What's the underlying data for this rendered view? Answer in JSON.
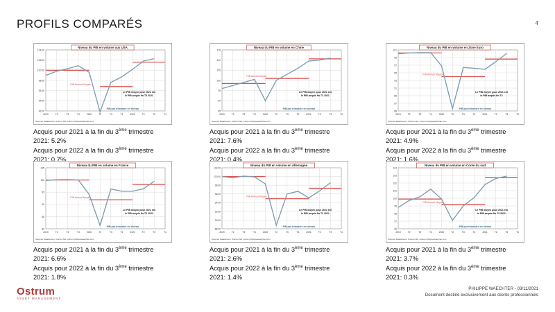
{
  "page": {
    "title": "PROFILS COMPARÉS",
    "number": "4"
  },
  "footer": {
    "author": "PHILIPPE WAECHTER - 03/11/2021",
    "disclaimer": "Document destiné exclusivement aux clients professionnels",
    "logo": "Ostrum",
    "logo_sub": "ASSET MANAGEMENT"
  },
  "common": {
    "x_labels": [
      "2019",
      "T2",
      "T3",
      "T4",
      "2020",
      "T2",
      "T3",
      "T4",
      "2021",
      "T2",
      "T3",
      "T4"
    ],
    "annual_label": "PIB Annuel Moyen",
    "quarterly_label": "PIB par trimestre en niveau",
    "source": "Sources Datastream, Ostrum AM, ostrum.philippewaechter.com",
    "colors": {
      "line": "#7f9fb4",
      "avg": "#d9534f",
      "title_border": "#c0392b",
      "grid": "#cfcfcf"
    }
  },
  "captions": {
    "prefix_2021": "Acquis pour 2021 à la fin du 3",
    "prefix_2022": "Acquis pour 2022 à la fin du 3",
    "sup": "ème",
    "suffix": " trimestre"
  },
  "chart_data": [
    {
      "type": "line",
      "title": "Niveau du PIB en volume aux USA",
      "yticks": [
        "92.00",
        "94.00",
        "96.00",
        "98.00",
        "100.00",
        "102.00",
        "104.00"
      ],
      "ylim": [
        92,
        104
      ],
      "note": [
        "Le PIB moyen pour 2021 est",
        "le PIB acquis fin T3 2021"
      ],
      "series": [
        {
          "values": [
            99.0,
            99.8,
            100.3,
            100.9,
            99.6,
            91.8,
            97.6,
            98.7,
            100.2,
            101.8,
            102.3
          ]
        }
      ],
      "averages": [
        {
          "from": 0,
          "to": 4,
          "value": 100.0
        },
        {
          "from": 5,
          "to": 8,
          "value": 96.8
        },
        {
          "from": 8,
          "to": 11,
          "value": 101.6
        }
      ],
      "acquis_2021": "2021: 5.2%",
      "acquis_2022": "2021: 0.7%"
    },
    {
      "type": "line",
      "title": "Niveau du PIB en volume en Chine",
      "yticks": [
        "85",
        "90",
        "95",
        "100",
        "105",
        "110",
        "115"
      ],
      "ylim": [
        85,
        115
      ],
      "note": [
        "Le PIB moyen pour 2021 est",
        "le PIB acquis fin T3 2021"
      ],
      "series": [
        {
          "values": [
            96.0,
            97.5,
            99.0,
            100.5,
            90.0,
            100.0,
            103.0,
            106.0,
            109.5,
            110.0,
            111.0
          ]
        }
      ],
      "averages": [
        {
          "from": 0,
          "to": 4,
          "value": 98.5
        },
        {
          "from": 4,
          "to": 8,
          "value": 101.0
        },
        {
          "from": 8,
          "to": 11,
          "value": 110.6
        }
      ],
      "acquis_2021": "2021: 7.6%",
      "acquis_2022": "2021: 0.4%"
    },
    {
      "type": "line",
      "title": "Niveau du PIB en volume en Zone Euro",
      "yticks": [
        "85",
        "87",
        "89",
        "91",
        "93",
        "95",
        "97",
        "99",
        "101"
      ],
      "ylim": [
        85,
        101
      ],
      "note": [
        "Le PIB moyen pour 2021 est",
        "le PIB acquis fin T3"
      ],
      "series": [
        {
          "values": [
            100.0,
            100.2,
            100.3,
            100.3,
            96.8,
            85.6,
            96.4,
            96.2,
            95.9,
            97.9,
            100.1
          ]
        }
      ],
      "averages": [
        {
          "from": 0,
          "to": 4,
          "value": 100.2
        },
        {
          "from": 4,
          "to": 8,
          "value": 94.0
        },
        {
          "from": 8,
          "to": 11,
          "value": 98.6
        }
      ],
      "acquis_2021": "2021: 4.9%",
      "acquis_2022": "2021: 1.6%"
    },
    {
      "type": "line",
      "title": "Niveau du PIB en volume en France",
      "yticks": [
        "80",
        "85",
        "90",
        "95",
        "100",
        "105"
      ],
      "ylim": [
        80,
        105
      ],
      "note": [
        "Le PIB moyen pour 2021 est",
        "le PIB acquis fin T3 2021"
      ],
      "series": [
        {
          "values": [
            99.8,
            100.1,
            100.2,
            100.0,
            94.1,
            81.4,
            96.3,
            95.4,
            95.4,
            96.4,
            99.5
          ]
        }
      ],
      "averages": [
        {
          "from": 0,
          "to": 4,
          "value": 100.0
        },
        {
          "from": 4,
          "to": 8,
          "value": 91.9
        },
        {
          "from": 8,
          "to": 11,
          "value": 98.2
        }
      ],
      "acquis_2021": "2021: 6.6%",
      "acquis_2022": "2021: 1.8%"
    },
    {
      "type": "line",
      "title": "Niveau du PIB en volume en Allemagne",
      "yticks": [
        "88.00",
        "90.00",
        "92.00",
        "94.00",
        "96.00",
        "98.00",
        "100.00",
        "102.00"
      ],
      "ylim": [
        88,
        102
      ],
      "note": [
        "Le PIB moyen pour 2021 est",
        "le PIB acquis fin T3 2021"
      ],
      "series": [
        {
          "values": [
            100.0,
            99.7,
            100.1,
            99.9,
            98.3,
            88.8,
            96.0,
            96.6,
            95.1,
            96.7,
            98.6
          ]
        }
      ],
      "averages": [
        {
          "from": 0,
          "to": 4,
          "value": 100.0
        },
        {
          "from": 4,
          "to": 8,
          "value": 94.9
        },
        {
          "from": 8,
          "to": 11,
          "value": 97.3
        }
      ],
      "acquis_2021": "2021: 2.6%",
      "acquis_2022": "2021: 1.4%"
    },
    {
      "type": "line",
      "title": "Niveau du PIB en volume en Corée du sud",
      "yticks": [
        "96",
        "97",
        "98",
        "99",
        "100",
        "101",
        "102",
        "103",
        "104"
      ],
      "ylim": [
        96,
        104
      ],
      "note": [
        "Le PIB moyen pour 2021 est",
        "le PIB acquis fin T3 2021"
      ],
      "series": [
        {
          "values": [
            98.8,
            99.7,
            100.2,
            101.2,
            99.9,
            97.1,
            99.0,
            100.1,
            101.8,
            102.6,
            102.9
          ]
        }
      ],
      "averages": [
        {
          "from": 0,
          "to": 4,
          "value": 99.9
        },
        {
          "from": 4,
          "to": 8,
          "value": 99.2
        },
        {
          "from": 8,
          "to": 11,
          "value": 102.7
        }
      ],
      "acquis_2021": "2021: 3.7%",
      "acquis_2022": "2021: 0.3%"
    }
  ]
}
